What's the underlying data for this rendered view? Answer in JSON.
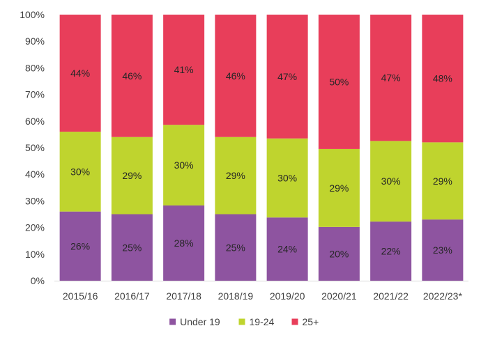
{
  "chart_data": {
    "type": "bar",
    "stacked": true,
    "percent_stacked": true,
    "categories": [
      "2015/16",
      "2016/17",
      "2017/18",
      "2018/19",
      "2019/20",
      "2020/21",
      "2021/22",
      "2022/23*"
    ],
    "series": [
      {
        "name": "Under 19",
        "color": "#8e54a0",
        "values": [
          26,
          25,
          28,
          25,
          24,
          20,
          22,
          23
        ],
        "labels": [
          "26%",
          "25%",
          "28%",
          "25%",
          "24%",
          "20%",
          "22%",
          "23%"
        ]
      },
      {
        "name": "19-24",
        "color": "#bfd42e",
        "values": [
          30,
          29,
          30,
          29,
          30,
          29,
          30,
          29
        ],
        "labels": [
          "30%",
          "29%",
          "30%",
          "29%",
          "30%",
          "29%",
          "30%",
          "29%"
        ]
      },
      {
        "name": "25+",
        "color": "#e83e5a",
        "values": [
          44,
          46,
          41,
          46,
          47,
          50,
          47,
          48
        ],
        "labels": [
          "44%",
          "46%",
          "41%",
          "46%",
          "47%",
          "50%",
          "47%",
          "48%"
        ]
      }
    ],
    "title": "",
    "xlabel": "",
    "ylabel": "",
    "ylim": [
      0,
      100
    ],
    "yticks": [
      "0%",
      "10%",
      "20%",
      "30%",
      "40%",
      "50%",
      "60%",
      "70%",
      "80%",
      "90%",
      "100%"
    ],
    "grid": false,
    "legend_position": "bottom"
  }
}
